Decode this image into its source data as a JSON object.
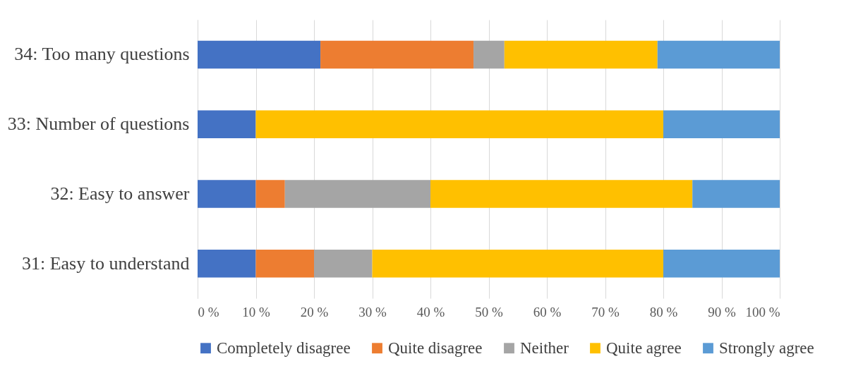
{
  "chart_data": {
    "type": "bar",
    "orientation": "horizontal",
    "stacked": true,
    "categories": [
      "34: Too many questions",
      "33: Number of questions",
      "32: Easy to answer",
      "31: Easy to understand"
    ],
    "series": [
      {
        "name": "Completely disagree",
        "color": "#4472c4",
        "values": [
          21.1,
          10,
          10,
          10
        ]
      },
      {
        "name": "Quite disagree",
        "color": "#ed7d31",
        "values": [
          26.3,
          0,
          5,
          10
        ]
      },
      {
        "name": "Neither",
        "color": "#a5a5a5",
        "values": [
          5.3,
          0,
          25,
          10
        ]
      },
      {
        "name": "Quite agree",
        "color": "#ffc000",
        "values": [
          26.3,
          70,
          45,
          50
        ]
      },
      {
        "name": "Strongly agree",
        "color": "#5b9bd5",
        "values": [
          21.0,
          20,
          15,
          20
        ]
      }
    ],
    "xlim": [
      0,
      100
    ],
    "xticks": [
      {
        "value": 0,
        "label": "0 %"
      },
      {
        "value": 10,
        "label": "10 %"
      },
      {
        "value": 20,
        "label": "20 %"
      },
      {
        "value": 30,
        "label": "30 %"
      },
      {
        "value": 40,
        "label": "40 %"
      },
      {
        "value": 50,
        "label": "50 %"
      },
      {
        "value": 60,
        "label": "60 %"
      },
      {
        "value": 70,
        "label": "70 %"
      },
      {
        "value": 80,
        "label": "80 %"
      },
      {
        "value": 90,
        "label": "90 %"
      },
      {
        "value": 100,
        "label": "100 %"
      }
    ],
    "grid": "x",
    "legend": "bottom"
  }
}
